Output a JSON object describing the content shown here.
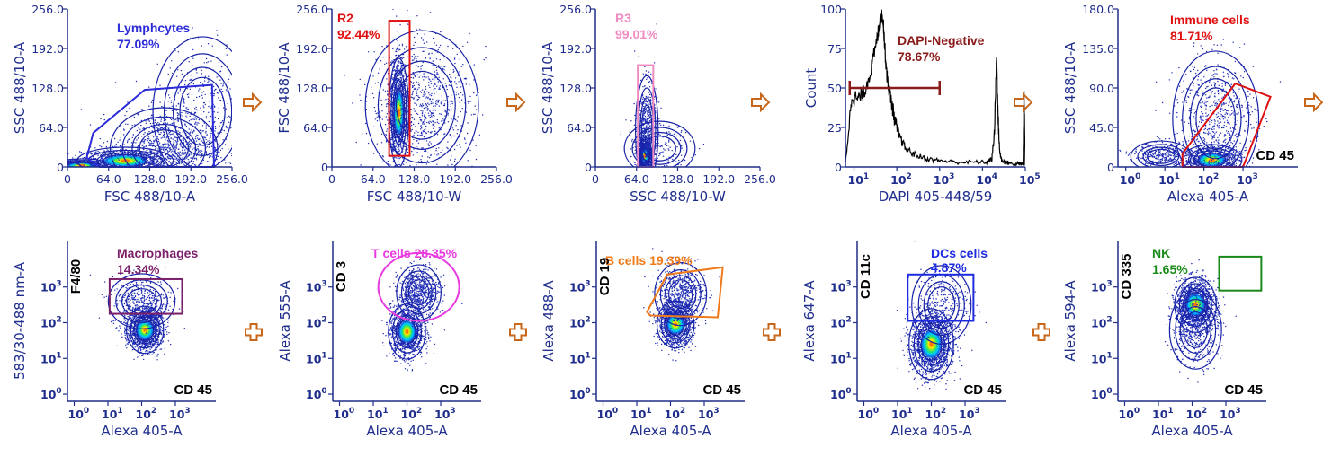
{
  "colors": {
    "axis": "#1f2d8c",
    "arrow": "#c8671a",
    "dots": "#1d2bb5",
    "contour": "#1722a6"
  },
  "connectors": {
    "row1_icon": "arrow-right-icon",
    "row2_icon": "plus-icon"
  },
  "chart_data": [
    {
      "type": "scatter",
      "xlabel": "FSC 488/10-A",
      "ylabel": "SSC 488/10-A",
      "x_ticks": [
        "0",
        "64.0",
        "128.0",
        "192.0",
        "256.0"
      ],
      "y_ticks": [
        "0",
        "64.0",
        "128.0",
        "192.0",
        "256.0"
      ],
      "xlim": [
        0,
        256
      ],
      "ylim": [
        0,
        256
      ],
      "populations": [
        {
          "x": 22,
          "y": 2,
          "sx": 22,
          "sy": 5,
          "n": 420,
          "heat": 0.6
        },
        {
          "x": 90,
          "y": 10,
          "sx": 34,
          "sy": 10,
          "n": 900,
          "heat": 1
        },
        {
          "x": 150,
          "y": 30,
          "sx": 38,
          "sy": 30,
          "n": 850,
          "heat": 0
        },
        {
          "x": 210,
          "y": 90,
          "sx": 35,
          "sy": 55,
          "n": 450,
          "heat": 0
        }
      ],
      "gate": {
        "name": "Lymphcytes",
        "pct": "77.09%",
        "color": "#2b2bd9",
        "shape": "polygon",
        "points": [
          [
            30,
            15
          ],
          [
            40,
            55
          ],
          [
            120,
            125
          ],
          [
            225,
            133
          ],
          [
            228,
            0
          ],
          [
            50,
            0
          ]
        ]
      }
    },
    {
      "type": "scatter",
      "xlabel": "FSC 488/10-W",
      "ylabel": "FSC 488/10-A",
      "x_ticks": [
        "0",
        "64.0",
        "128.0",
        "192.0",
        "256.0"
      ],
      "y_ticks": [
        "0",
        "64.0",
        "128.0",
        "192.0",
        "256.0"
      ],
      "xlim": [
        0,
        256
      ],
      "ylim": [
        0,
        256
      ],
      "populations": [
        {
          "x": 104,
          "y": 88,
          "sx": 7,
          "sy": 40,
          "n": 1100,
          "heat": 1
        },
        {
          "x": 140,
          "y": 100,
          "sx": 40,
          "sy": 55,
          "n": 900,
          "heat": 0
        }
      ],
      "gate": {
        "name": "R2",
        "pct": "92.44%",
        "color": "#e01010",
        "shape": "rect",
        "x0": 89,
        "x1": 121,
        "y0": 18,
        "y1": 237
      }
    },
    {
      "type": "scatter",
      "xlabel": "SSC 488/10-W",
      "ylabel": "SSC 488/10-A",
      "x_ticks": [
        "0",
        "64.0",
        "128.0",
        "192.0",
        "256.0"
      ],
      "y_ticks": [
        "0",
        "64.0",
        "128.0",
        "192.0",
        "256.0"
      ],
      "xlim": [
        0,
        256
      ],
      "ylim": [
        0,
        256
      ],
      "populations": [
        {
          "x": 77,
          "y": 18,
          "sx": 5,
          "sy": 12,
          "n": 900,
          "heat": 1
        },
        {
          "x": 80,
          "y": 60,
          "sx": 8,
          "sy": 40,
          "n": 500,
          "heat": 0
        },
        {
          "x": 100,
          "y": 30,
          "sx": 25,
          "sy": 20,
          "n": 150,
          "heat": 0
        }
      ],
      "gate": {
        "name": "R3",
        "pct": "99.01%",
        "color": "#f08ac0",
        "shape": "rect",
        "x0": 66,
        "x1": 90,
        "y0": 0,
        "y1": 165
      }
    },
    {
      "type": "line",
      "xlabel": "DAPI 405-448/59",
      "ylabel": "Count",
      "x_ticks_exp": [
        "1",
        "2",
        "3",
        "4",
        "5"
      ],
      "y_ticks": [
        "0",
        "25",
        "50",
        "75",
        "100"
      ],
      "xlim_log": [
        0.8,
        5
      ],
      "ylim": [
        0,
        100
      ],
      "series": [
        {
          "x": [
            0.8,
            0.95,
            1.1,
            1.25,
            1.4,
            1.55,
            1.62,
            1.68,
            1.72,
            1.78,
            1.85,
            1.95,
            2.05,
            2.2,
            2.4,
            2.7,
            3.0,
            3.4,
            3.8,
            4.1,
            4.22,
            4.28,
            4.33,
            4.36,
            4.4,
            4.45,
            4.55,
            4.7,
            4.85,
            4.95,
            4.97,
            5.0
          ],
          "y": [
            2,
            45,
            43,
            48,
            62,
            82,
            97,
            94,
            75,
            55,
            45,
            30,
            20,
            12,
            8,
            5,
            4,
            3,
            3,
            3,
            5,
            22,
            70,
            35,
            10,
            4,
            3,
            2,
            2,
            2,
            45,
            1
          ]
        }
      ],
      "gate": {
        "name": "DAPI-Negative",
        "pct": "78.67%",
        "color": "#8b1a1a",
        "shape": "range",
        "x0": 0.9,
        "x1": 3.0,
        "y": 50
      }
    },
    {
      "type": "scatter",
      "xlabel": "Alexa 405-A",
      "ylabel": "SSC 488/10-A",
      "x_ticks_exp": [
        "0",
        "1",
        "2",
        "3"
      ],
      "y_ticks": [
        "0",
        "45.0",
        "90.0",
        "135.0",
        "180.0"
      ],
      "xlim_log": [
        -0.2,
        4.4
      ],
      "ylim": [
        0,
        180
      ],
      "marker": "CD 45",
      "populations": [
        {
          "x": 2.2,
          "y": 8,
          "sx": 0.35,
          "sy": 8,
          "n": 900,
          "heat": 1
        },
        {
          "x": 0.9,
          "y": 12,
          "sx": 0.35,
          "sy": 8,
          "n": 350,
          "heat": 0
        },
        {
          "x": 2.3,
          "y": 55,
          "sx": 0.5,
          "sy": 35,
          "n": 700,
          "heat": 0
        }
      ],
      "gate": {
        "name": "Immune cells",
        "pct": "81.71%",
        "color": "#e01010",
        "shape": "polygon",
        "points": [
          [
            1.45,
            15
          ],
          [
            2.8,
            95
          ],
          [
            3.7,
            80
          ],
          [
            3.0,
            0
          ],
          [
            1.45,
            0
          ]
        ]
      }
    },
    {
      "type": "scatter",
      "xlabel": "Alexa 405-A",
      "ylabel": "583/30-488 nm-A",
      "x_ticks_exp": [
        "0",
        "1",
        "2",
        "3"
      ],
      "y_ticks_exp": [
        "0",
        "1",
        "2",
        "3"
      ],
      "xlim_log": [
        -0.2,
        4.2
      ],
      "ylim_log": [
        -0.2,
        4.3
      ],
      "marker": "CD 45",
      "y_marker": "F4/80",
      "populations": [
        {
          "x": 2.1,
          "y": 1.8,
          "sx": 0.25,
          "sy": 0.3,
          "n": 1300,
          "heat": 1
        },
        {
          "x": 2.0,
          "y": 2.6,
          "sx": 0.45,
          "sy": 0.35,
          "n": 400,
          "heat": 0
        }
      ],
      "gate": {
        "name": "Macrophages",
        "pct": "14.34%",
        "color": "#7a1f6a",
        "shape": "rect",
        "x0": 1.05,
        "x1": 3.2,
        "y0": 2.25,
        "y1": 3.22
      }
    },
    {
      "type": "scatter",
      "xlabel": "Alexa 405-A",
      "ylabel": "Alexa 555-A",
      "x_ticks_exp": [
        "0",
        "1",
        "2",
        "3"
      ],
      "y_ticks_exp": [
        "0",
        "1",
        "2",
        "3"
      ],
      "xlim_log": [
        -0.2,
        4.2
      ],
      "ylim_log": [
        -0.2,
        4.3
      ],
      "marker": "CD 45",
      "y_marker": "CD 3",
      "populations": [
        {
          "x": 2.0,
          "y": 1.75,
          "sx": 0.25,
          "sy": 0.35,
          "n": 1100,
          "heat": 1
        },
        {
          "x": 2.35,
          "y": 2.85,
          "sx": 0.3,
          "sy": 0.35,
          "n": 700,
          "heat": 0
        }
      ],
      "gate": {
        "name": "T cells",
        "pct": "28.35%",
        "color": "#e83ae0",
        "shape": "ellipse",
        "cx": 2.35,
        "cy": 3.0,
        "rx": 1.2,
        "ry": 0.95
      }
    },
    {
      "type": "scatter",
      "xlabel": "Alexa 405-A",
      "ylabel": "Alexa 488-A",
      "x_ticks_exp": [
        "0",
        "1",
        "2",
        "3"
      ],
      "y_ticks_exp": [
        "0",
        "1",
        "2",
        "3"
      ],
      "xlim_log": [
        -0.2,
        4.2
      ],
      "ylim_log": [
        -0.2,
        4.3
      ],
      "marker": "CD 45",
      "y_marker": "CD 19",
      "populations": [
        {
          "x": 2.15,
          "y": 1.95,
          "sx": 0.25,
          "sy": 0.3,
          "n": 1200,
          "heat": 1
        },
        {
          "x": 2.3,
          "y": 2.8,
          "sx": 0.35,
          "sy": 0.4,
          "n": 600,
          "heat": 0
        }
      ],
      "gate": {
        "name": "B cells",
        "pct": "19.39%",
        "color": "#f07a1a",
        "shape": "polygon",
        "points": [
          [
            1.3,
            2.3
          ],
          [
            1.9,
            3.35
          ],
          [
            3.55,
            3.55
          ],
          [
            3.4,
            2.15
          ],
          [
            1.4,
            2.2
          ]
        ]
      }
    },
    {
      "type": "scatter",
      "xlabel": "Alexa 405-A",
      "ylabel": "Alexa 647-A",
      "x_ticks_exp": [
        "0",
        "1",
        "2",
        "3"
      ],
      "y_ticks_exp": [
        "0",
        "1",
        "2",
        "3"
      ],
      "xlim_log": [
        -0.2,
        4.2
      ],
      "ylim_log": [
        -0.2,
        4.3
      ],
      "marker": "CD 45",
      "y_marker": "CD 11c",
      "populations": [
        {
          "x": 2.0,
          "y": 1.4,
          "sx": 0.3,
          "sy": 0.45,
          "n": 1500,
          "heat": 1
        },
        {
          "x": 2.3,
          "y": 2.5,
          "sx": 0.4,
          "sy": 0.5,
          "n": 300,
          "heat": 0
        }
      ],
      "gate": {
        "name": "DCs cells",
        "pct": "4.87%",
        "color": "#1d2be0",
        "shape": "rect",
        "x0": 1.3,
        "x1": 3.25,
        "y0": 2.05,
        "y1": 3.35
      }
    },
    {
      "type": "scatter",
      "xlabel": "Alexa 405-A",
      "ylabel": "Alexa 594-A",
      "x_ticks_exp": [
        "0",
        "1",
        "2",
        "3"
      ],
      "y_ticks_exp": [
        "0",
        "1",
        "2",
        "3"
      ],
      "xlim_log": [
        -0.2,
        4.2
      ],
      "ylim_log": [
        -0.2,
        4.3
      ],
      "marker": "CD 45",
      "y_marker": "CD 335",
      "populations": [
        {
          "x": 2.1,
          "y": 2.5,
          "sx": 0.28,
          "sy": 0.35,
          "n": 1400,
          "heat": 1
        },
        {
          "x": 2.1,
          "y": 1.8,
          "sx": 0.35,
          "sy": 0.5,
          "n": 400,
          "heat": 0
        }
      ],
      "gate": {
        "name": "NK",
        "pct": "1.65%",
        "color": "#1a8a1a",
        "shape": "rect",
        "x0": 2.8,
        "x1": 4.05,
        "y0": 2.9,
        "y1": 3.85
      }
    }
  ]
}
